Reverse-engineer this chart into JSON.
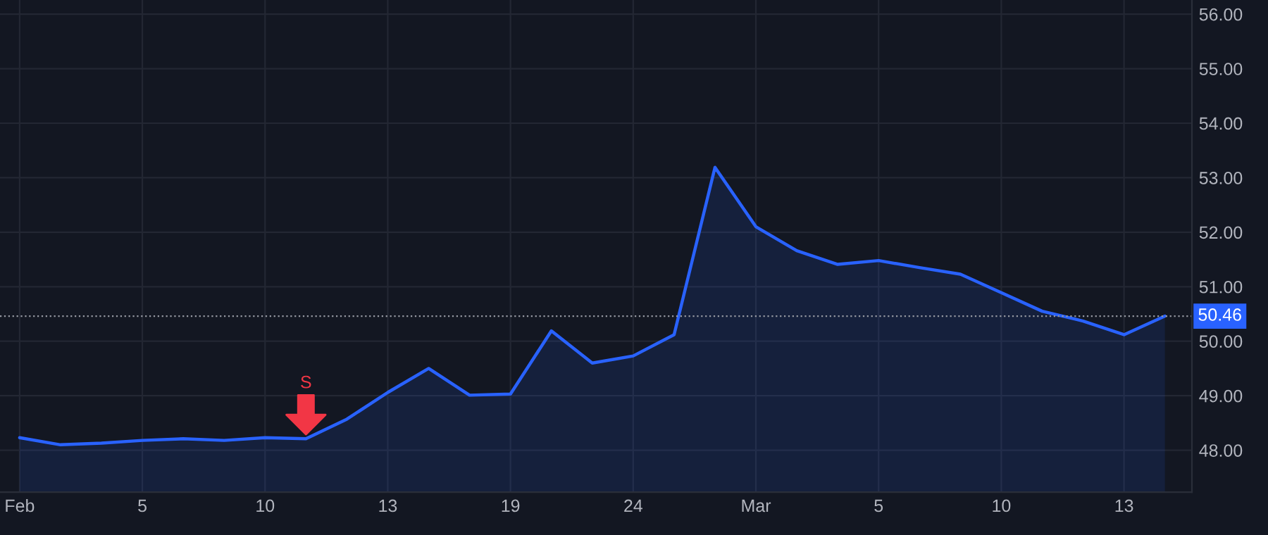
{
  "chart_data": {
    "type": "area",
    "categories": [
      "Feb",
      null,
      null,
      "5",
      null,
      null,
      "10",
      null,
      null,
      "13",
      null,
      null,
      "19",
      null,
      null,
      "24",
      null,
      null,
      "Mar",
      null,
      null,
      "5",
      null,
      null,
      "10",
      null,
      null,
      "13",
      null
    ],
    "series": [
      {
        "color": "#2962ff",
        "values": [
          48.23,
          48.1,
          48.13,
          48.18,
          48.21,
          48.18,
          48.23,
          48.21,
          48.57,
          49.06,
          49.5,
          49.01,
          49.03,
          50.19,
          49.6,
          49.73,
          50.12,
          53.19,
          52.1,
          51.66,
          51.41,
          51.48,
          51.35,
          51.23,
          50.89,
          50.55,
          50.37,
          50.12,
          50.46
        ]
      },
      {
        "type": "scatter",
        "name": "S",
        "color": "#f23645",
        "marker": "triangle",
        "values": [
          null,
          null,
          null,
          null,
          null,
          null,
          null,
          48.65,
          null,
          null,
          null,
          null,
          null,
          null,
          null,
          null,
          null,
          null,
          null,
          null,
          null,
          null,
          null,
          null,
          null,
          null,
          null,
          null,
          null
        ]
      }
    ],
    "ylim": [
      47.23,
      56.26
    ],
    "yticks": [
      {
        "value": 48,
        "label": "48.00"
      },
      {
        "value": 49,
        "label": "49.00"
      },
      {
        "value": 50,
        "label": "50.00"
      },
      {
        "value": 51,
        "label": "51.00"
      },
      {
        "value": 52,
        "label": "52.00"
      },
      {
        "value": 53,
        "label": "53.00"
      },
      {
        "value": 54,
        "label": "54.00"
      },
      {
        "value": 55,
        "label": "55.00"
      },
      {
        "value": 56,
        "label": "56.00"
      }
    ],
    "ref_lines": [
      {
        "axis": "y",
        "value": 50.46,
        "label": "50.46",
        "color": "#9598a1",
        "line_style": "dotted"
      }
    ],
    "grid": true
  }
}
